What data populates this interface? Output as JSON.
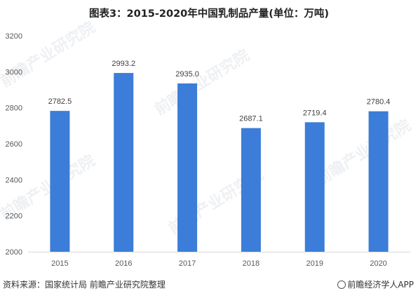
{
  "chart_data": {
    "type": "bar",
    "title": "图表3：2015-2020年中国乳制品产量(单位：万吨)",
    "categories": [
      "2015",
      "2016",
      "2017",
      "2018",
      "2019",
      "2020"
    ],
    "values": [
      2782.5,
      2993.2,
      2935.0,
      2687.1,
      2719.4,
      2780.4
    ],
    "value_labels": [
      "2782.5",
      "2993.2",
      "2935.0",
      "2687.1",
      "2719.4",
      "2780.4"
    ],
    "ylim": [
      2000,
      3200
    ],
    "yticks": [
      2000,
      2200,
      2400,
      2600,
      2800,
      3000,
      3200
    ],
    "grid": false,
    "bar_color": "#3b7dd8"
  },
  "footer": {
    "source": "资料来源：国家统计局 前瞻产业研究院整理",
    "credit": "前瞻经济学人APP"
  },
  "watermark_text": "前瞻产业研究院"
}
